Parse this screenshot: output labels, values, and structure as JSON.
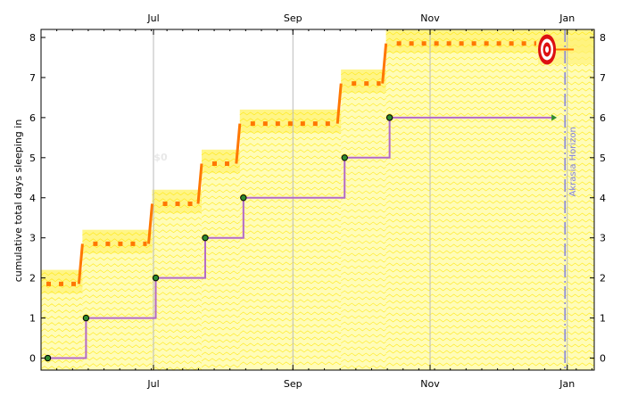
{
  "chart_data": {
    "type": "line",
    "ylabel": "cumulative total days sleeping in",
    "ylim": [
      -0.3,
      8.2
    ],
    "xlim": [
      "2024-05-12",
      "2025-01-13"
    ],
    "y_ticks": [
      0,
      1,
      2,
      3,
      4,
      5,
      6,
      7,
      8
    ],
    "x_ticks": [
      {
        "label": "Jul",
        "date": "2024-07-01"
      },
      {
        "label": "Sep",
        "date": "2024-09-01"
      },
      {
        "label": "Nov",
        "date": "2024-11-01"
      },
      {
        "label": "Jan",
        "date": "2025-01-01"
      }
    ],
    "datapoints": [
      {
        "x": "2024-05-15",
        "y": 0
      },
      {
        "x": "2024-06-01",
        "y": 1
      },
      {
        "x": "2024-07-02",
        "y": 2
      },
      {
        "x": "2024-07-24",
        "y": 3
      },
      {
        "x": "2024-08-10",
        "y": 4
      },
      {
        "x": "2024-09-24",
        "y": 5
      },
      {
        "x": "2024-10-14",
        "y": 6
      }
    ],
    "projection_end": {
      "x": "2024-12-25",
      "y": 6
    },
    "akrasia_horizon": {
      "date": "2024-12-31",
      "label": "Akrasia Horizon"
    },
    "goal": {
      "x": "2024-12-23",
      "y": 7.7
    },
    "watermark": "$0",
    "colors": {
      "line": "#b469c8",
      "points": "#2e8b2e",
      "road": "#ff7700",
      "yellow_band": "#fff27a",
      "yellow_light": "#fffcb8",
      "horizon": "#8080e0",
      "grid": "#bbbbbb"
    }
  }
}
